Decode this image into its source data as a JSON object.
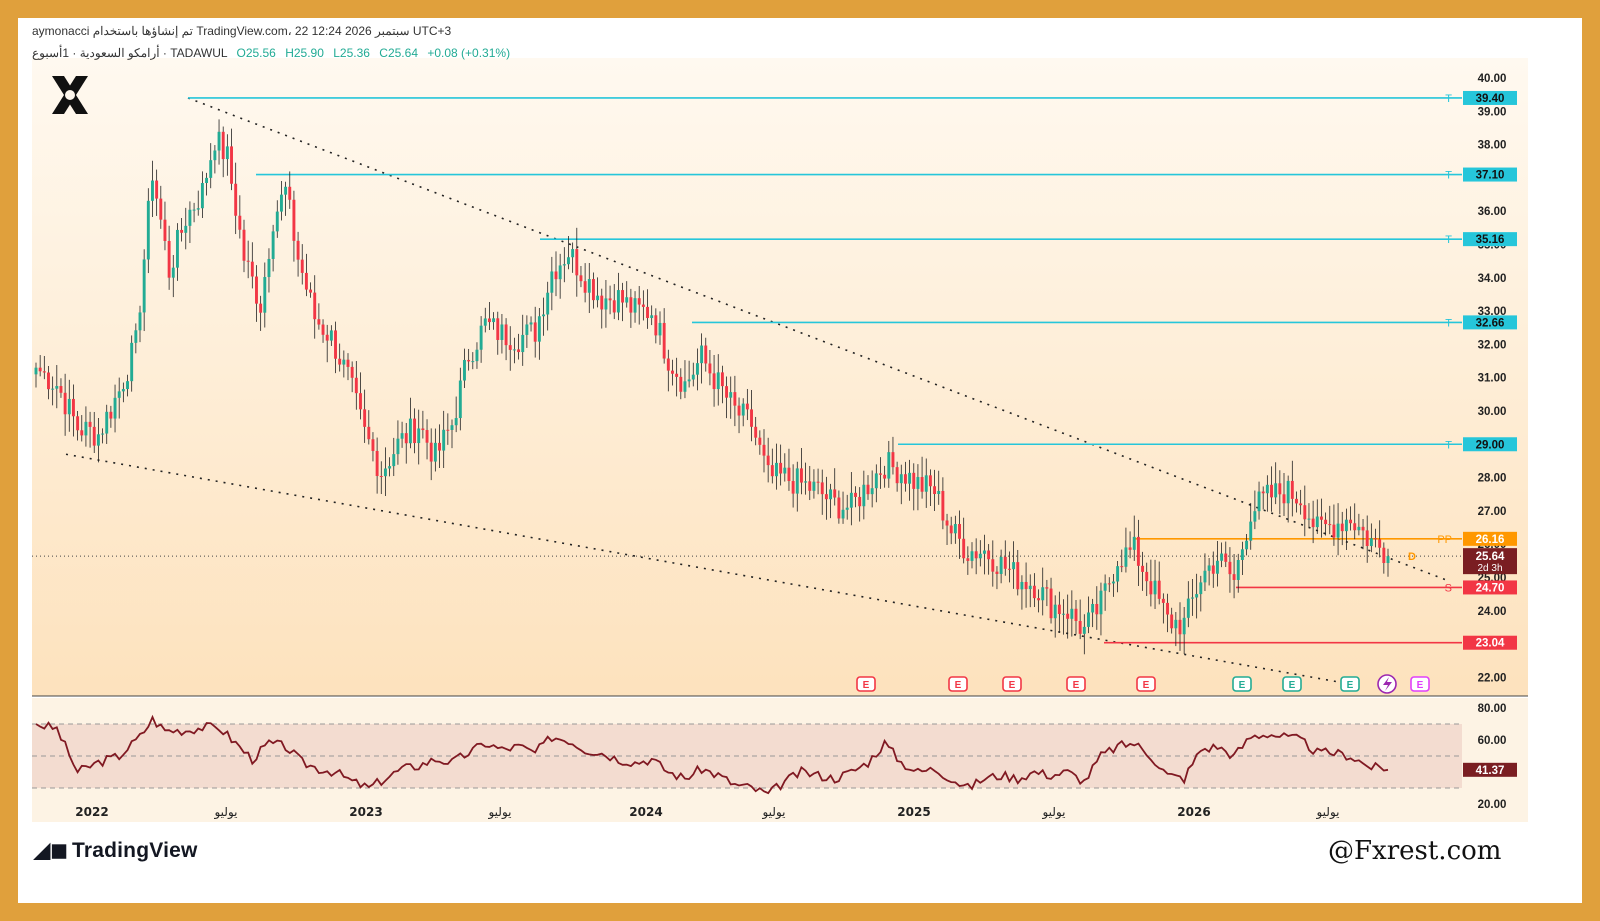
{
  "header": {
    "line1": "aymonacci تم إنشاؤها باستخدام TradingView.com، 22 سبتمبر 2026 12:24 UTC+3",
    "line2_symbol": "أرامكو السعودية · 1أسبوع · TADAWUL",
    "open": "O25.56",
    "high": "H25.90",
    "low": "L25.36",
    "close": "C25.64",
    "change": "+0.08 (+0.31%)"
  },
  "brand": {
    "tradingview": "TradingView",
    "watermark": "@Fxrest.com"
  },
  "colors": {
    "frame": "#e0a03c",
    "up": "#22ab94",
    "down": "#f23645",
    "target": "#26c6da",
    "pivot": "#ff9800",
    "support": "#f23645",
    "rsi": "#801922"
  },
  "chart_data": {
    "type": "candlestick",
    "timeframe": "1W",
    "ylim": [
      21.5,
      40.6
    ],
    "y_ticks": [
      "40.00",
      "39.00",
      "38.00",
      "36.00",
      "35.00",
      "34.00",
      "33.00",
      "32.00",
      "31.00",
      "30.00",
      "28.00",
      "27.00",
      "26.00",
      "25.00",
      "24.00",
      "22.00"
    ],
    "x_labels": [
      "2022",
      "يوليو",
      "2023",
      "يوليو",
      "2024",
      "يوليو",
      "2025",
      "يوليو",
      "2026",
      "يوليو"
    ],
    "last_price": "25.64",
    "countdown": "2d 3h",
    "levels": [
      {
        "tag": "T",
        "value": 39.4,
        "label": "39.40",
        "kind": "target"
      },
      {
        "tag": "T",
        "value": 37.1,
        "label": "37.10",
        "kind": "target"
      },
      {
        "tag": "T",
        "value": 35.16,
        "label": "35.16",
        "kind": "target"
      },
      {
        "tag": "T",
        "value": 32.66,
        "label": "32.66",
        "kind": "target"
      },
      {
        "tag": "T",
        "value": 29.0,
        "label": "29.00",
        "kind": "target"
      },
      {
        "tag": "PP",
        "value": 26.16,
        "label": "26.16",
        "kind": "pivot"
      },
      {
        "tag": "S",
        "value": 24.7,
        "label": "24.70",
        "kind": "support"
      },
      {
        "tag": "",
        "value": 23.04,
        "label": "23.04",
        "kind": "support"
      }
    ],
    "anchors": [
      {
        "t": 0,
        "p": 31.3
      },
      {
        "t": 5,
        "p": 30.8
      },
      {
        "t": 10,
        "p": 29.5
      },
      {
        "t": 15,
        "p": 29.3
      },
      {
        "t": 20,
        "p": 30.6
      },
      {
        "t": 24,
        "p": 32.0
      },
      {
        "t": 28,
        "p": 37.2
      },
      {
        "t": 32,
        "p": 34.2
      },
      {
        "t": 36,
        "p": 35.8
      },
      {
        "t": 40,
        "p": 36.6
      },
      {
        "t": 43,
        "p": 38.2
      },
      {
        "t": 46,
        "p": 37.6
      },
      {
        "t": 50,
        "p": 34.6
      },
      {
        "t": 54,
        "p": 33.2
      },
      {
        "t": 57,
        "p": 35.8
      },
      {
        "t": 60,
        "p": 36.6
      },
      {
        "t": 63,
        "p": 34.6
      },
      {
        "t": 67,
        "p": 32.8
      },
      {
        "t": 71,
        "p": 32.2
      },
      {
        "t": 75,
        "p": 31.0
      },
      {
        "t": 79,
        "p": 29.3
      },
      {
        "t": 83,
        "p": 28.2
      },
      {
        "t": 87,
        "p": 29.0
      },
      {
        "t": 92,
        "p": 29.6
      },
      {
        "t": 96,
        "p": 28.6
      },
      {
        "t": 100,
        "p": 29.6
      },
      {
        "t": 104,
        "p": 31.7
      },
      {
        "t": 108,
        "p": 32.6
      },
      {
        "t": 112,
        "p": 32.3
      },
      {
        "t": 116,
        "p": 32.2
      },
      {
        "t": 120,
        "p": 32.4
      },
      {
        "t": 124,
        "p": 34.2
      },
      {
        "t": 128,
        "p": 34.8
      },
      {
        "t": 132,
        "p": 34.0
      },
      {
        "t": 136,
        "p": 33.4
      },
      {
        "t": 140,
        "p": 33.4
      },
      {
        "t": 144,
        "p": 33.0
      },
      {
        "t": 148,
        "p": 33.0
      },
      {
        "t": 152,
        "p": 31.6
      },
      {
        "t": 156,
        "p": 30.8
      },
      {
        "t": 160,
        "p": 31.6
      },
      {
        "t": 164,
        "p": 30.8
      },
      {
        "t": 168,
        "p": 30.0
      },
      {
        "t": 172,
        "p": 29.6
      },
      {
        "t": 176,
        "p": 28.0
      },
      {
        "t": 180,
        "p": 28.0
      },
      {
        "t": 184,
        "p": 27.8
      },
      {
        "t": 188,
        "p": 27.6
      },
      {
        "t": 192,
        "p": 27.2
      },
      {
        "t": 196,
        "p": 27.1
      },
      {
        "t": 200,
        "p": 27.8
      },
      {
        "t": 204,
        "p": 28.4
      },
      {
        "t": 208,
        "p": 28.2
      },
      {
        "t": 212,
        "p": 27.8
      },
      {
        "t": 216,
        "p": 27.6
      },
      {
        "t": 220,
        "p": 26.4
      },
      {
        "t": 224,
        "p": 25.8
      },
      {
        "t": 228,
        "p": 25.8
      },
      {
        "t": 232,
        "p": 25.4
      },
      {
        "t": 236,
        "p": 25.0
      },
      {
        "t": 240,
        "p": 24.8
      },
      {
        "t": 244,
        "p": 24.2
      },
      {
        "t": 248,
        "p": 24.0
      },
      {
        "t": 252,
        "p": 23.4
      },
      {
        "t": 256,
        "p": 24.2
      },
      {
        "t": 260,
        "p": 25.6
      },
      {
        "t": 264,
        "p": 25.8
      },
      {
        "t": 268,
        "p": 24.8
      },
      {
        "t": 272,
        "p": 23.7
      },
      {
        "t": 276,
        "p": 23.6
      },
      {
        "t": 280,
        "p": 25.0
      },
      {
        "t": 284,
        "p": 25.6
      },
      {
        "t": 288,
        "p": 24.9
      },
      {
        "t": 292,
        "p": 27.0
      },
      {
        "t": 296,
        "p": 27.4
      },
      {
        "t": 300,
        "p": 27.6
      },
      {
        "t": 304,
        "p": 27.4
      },
      {
        "t": 308,
        "p": 26.4
      },
      {
        "t": 312,
        "p": 26.6
      },
      {
        "t": 316,
        "p": 26.8
      },
      {
        "t": 320,
        "p": 26.2
      },
      {
        "t": 324,
        "p": 25.8
      },
      {
        "t": 325,
        "p": 25.64
      }
    ],
    "rsi": {
      "ylim": [
        10,
        85
      ],
      "y_ticks": [
        "80.00",
        "60.00",
        "40.00",
        "20.00"
      ],
      "band": [
        30,
        70
      ],
      "last": "41.37",
      "anchors": [
        {
          "t": 0,
          "v": 70
        },
        {
          "t": 5,
          "v": 67
        },
        {
          "t": 10,
          "v": 40
        },
        {
          "t": 15,
          "v": 46
        },
        {
          "t": 20,
          "v": 50
        },
        {
          "t": 25,
          "v": 62
        },
        {
          "t": 28,
          "v": 73
        },
        {
          "t": 31,
          "v": 66
        },
        {
          "t": 36,
          "v": 66
        },
        {
          "t": 40,
          "v": 68
        },
        {
          "t": 44,
          "v": 68
        },
        {
          "t": 48,
          "v": 58
        },
        {
          "t": 52,
          "v": 48
        },
        {
          "t": 56,
          "v": 58
        },
        {
          "t": 60,
          "v": 56
        },
        {
          "t": 64,
          "v": 46
        },
        {
          "t": 68,
          "v": 42
        },
        {
          "t": 72,
          "v": 40
        },
        {
          "t": 76,
          "v": 34
        },
        {
          "t": 80,
          "v": 30
        },
        {
          "t": 84,
          "v": 36
        },
        {
          "t": 88,
          "v": 42
        },
        {
          "t": 92,
          "v": 44
        },
        {
          "t": 96,
          "v": 48
        },
        {
          "t": 100,
          "v": 46
        },
        {
          "t": 104,
          "v": 52
        },
        {
          "t": 108,
          "v": 58
        },
        {
          "t": 112,
          "v": 54
        },
        {
          "t": 116,
          "v": 56
        },
        {
          "t": 120,
          "v": 52
        },
        {
          "t": 124,
          "v": 62
        },
        {
          "t": 128,
          "v": 60
        },
        {
          "t": 132,
          "v": 54
        },
        {
          "t": 136,
          "v": 52
        },
        {
          "t": 140,
          "v": 48
        },
        {
          "t": 144,
          "v": 46
        },
        {
          "t": 148,
          "v": 48
        },
        {
          "t": 152,
          "v": 40
        },
        {
          "t": 156,
          "v": 36
        },
        {
          "t": 160,
          "v": 42
        },
        {
          "t": 164,
          "v": 38
        },
        {
          "t": 168,
          "v": 32
        },
        {
          "t": 172,
          "v": 30
        },
        {
          "t": 176,
          "v": 26
        },
        {
          "t": 180,
          "v": 34
        },
        {
          "t": 184,
          "v": 40
        },
        {
          "t": 188,
          "v": 38
        },
        {
          "t": 192,
          "v": 36
        },
        {
          "t": 196,
          "v": 40
        },
        {
          "t": 200,
          "v": 46
        },
        {
          "t": 204,
          "v": 58
        },
        {
          "t": 208,
          "v": 46
        },
        {
          "t": 212,
          "v": 40
        },
        {
          "t": 216,
          "v": 42
        },
        {
          "t": 220,
          "v": 36
        },
        {
          "t": 224,
          "v": 30
        },
        {
          "t": 228,
          "v": 36
        },
        {
          "t": 232,
          "v": 38
        },
        {
          "t": 236,
          "v": 36
        },
        {
          "t": 240,
          "v": 40
        },
        {
          "t": 244,
          "v": 38
        },
        {
          "t": 248,
          "v": 40
        },
        {
          "t": 252,
          "v": 34
        },
        {
          "t": 256,
          "v": 50
        },
        {
          "t": 260,
          "v": 56
        },
        {
          "t": 264,
          "v": 58
        },
        {
          "t": 268,
          "v": 50
        },
        {
          "t": 272,
          "v": 38
        },
        {
          "t": 276,
          "v": 36
        },
        {
          "t": 280,
          "v": 54
        },
        {
          "t": 284,
          "v": 56
        },
        {
          "t": 288,
          "v": 50
        },
        {
          "t": 292,
          "v": 62
        },
        {
          "t": 296,
          "v": 64
        },
        {
          "t": 300,
          "v": 62
        },
        {
          "t": 304,
          "v": 60
        },
        {
          "t": 308,
          "v": 52
        },
        {
          "t": 312,
          "v": 52
        },
        {
          "t": 316,
          "v": 50
        },
        {
          "t": 320,
          "v": 44
        },
        {
          "t": 324,
          "v": 41.37
        }
      ]
    },
    "earnings_marker": "E"
  }
}
